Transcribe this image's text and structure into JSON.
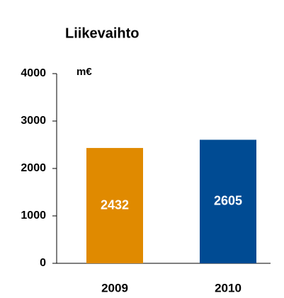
{
  "chart_data": {
    "type": "bar",
    "title": "Liikevaihto",
    "unit_label": "m€",
    "categories": [
      "2009",
      "2010"
    ],
    "values": [
      2432,
      2605
    ],
    "colors": [
      "#e08a00",
      "#004b93"
    ],
    "ylim": [
      0,
      4000
    ],
    "yticks": [
      0,
      1000,
      2000,
      3000,
      4000
    ],
    "grid": false,
    "value_labels_inside": true
  }
}
